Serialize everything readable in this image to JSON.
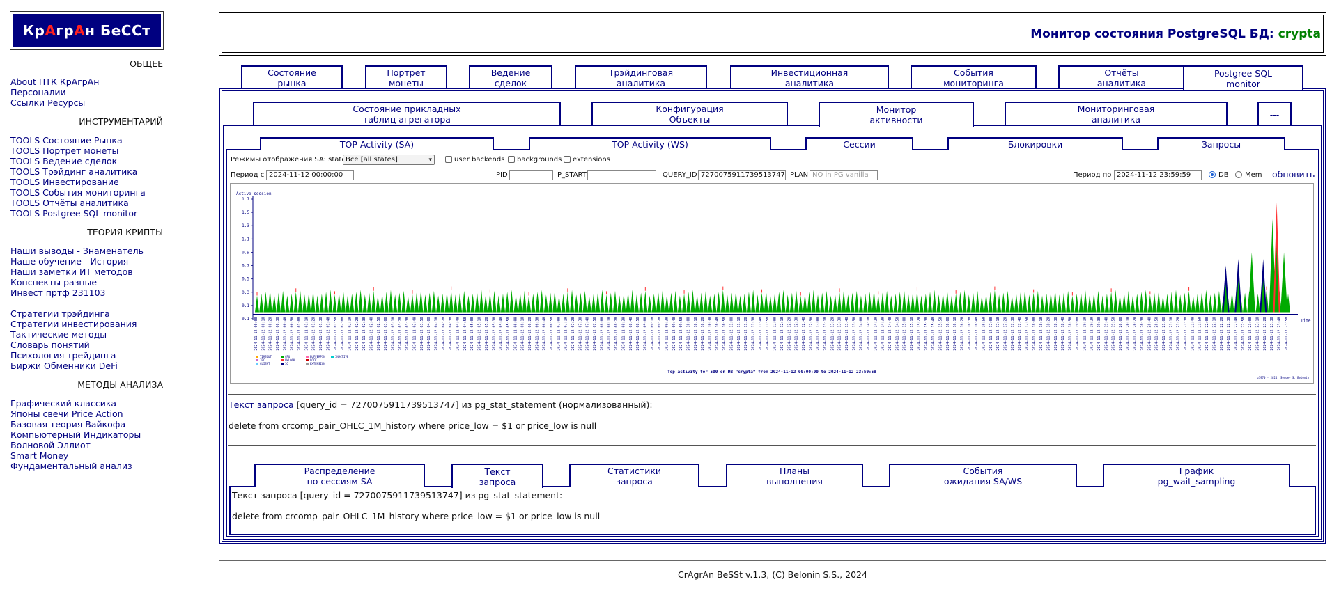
{
  "logo": {
    "parts": [
      {
        "t": "Кр",
        "red": false
      },
      {
        "t": "А",
        "red": true
      },
      {
        "t": "гр",
        "red": false
      },
      {
        "t": "А",
        "red": true
      },
      {
        "t": "н БеССт",
        "red": false
      }
    ]
  },
  "sidebar": {
    "sections": [
      {
        "heading": "ОБЩЕЕ",
        "links": [
          "About ПТК КрАгрАн",
          "Персоналии",
          "Ссылки Ресурсы"
        ]
      },
      {
        "heading": "ИНСТРУМЕНТАРИЙ",
        "links": [
          "TOOLS Состояние Рынка",
          "TOOLS Портрет монеты",
          "TOOLS Ведение сделок",
          "TOOLS Трэйдинг аналитика",
          "TOOLS Инвестирование",
          "TOOLS События мониторинга",
          "TOOLS Отчёты аналитика",
          "TOOLS Postgree SQL monitor"
        ]
      },
      {
        "heading": "ТЕОРИЯ КРИПТЫ",
        "links": [
          "Наши выводы - Знаменатель",
          "Наше обучение - История",
          "Наши заметки ИТ методов",
          "Конспекты разные",
          "Инвест пртф 231103",
          "",
          "Стратегии трэйдинга",
          "Стратегии инвестирования",
          "Тактические методы",
          "Словарь понятий",
          "Психология трейдинга",
          "Биржи Обменники DeFi"
        ]
      },
      {
        "heading": "МЕТОДЫ АНАЛИЗА",
        "links": [
          "Графический классика",
          "Японы свечи Price Action",
          "Базовая теория Вайкофа",
          "Компьютерный Индикаторы",
          "Волновой Эллиот",
          "Smart Money",
          "Фундаментальный анализ"
        ]
      }
    ]
  },
  "header": {
    "title": "Монитор состояния PostgreSQL БД:",
    "db": "crypta"
  },
  "main_tabs": [
    "Состояние\nрынка",
    "Портрет\nмонеты",
    "Ведение\nсделок",
    "Трэйдинговая\nаналитика",
    "Инвестиционная\nаналитика",
    "События\nмониторинга",
    "Отчёты\nаналитика",
    "Postgree SQL\nmonitor"
  ],
  "sub_tabs": [
    "Состояние прикладных\nтаблиц агрегатора",
    "Конфигурация\nОбъекты",
    "Монитор\nактивности",
    "Мониторинговая\nаналитика",
    "---"
  ],
  "activity_tabs": [
    "TOP Activity (SA)",
    "TOP Activity (WS)",
    "Сессии",
    "Блокировки",
    "Запросы"
  ],
  "controls": {
    "mode_label": "Режимы отображения SA: state",
    "mode_value": "Все [all states]",
    "chk_user_backends": "user backends",
    "chk_backgrounds": "backgrounds",
    "chk_extensions": "extensions",
    "period_from_label": "Период с",
    "period_from": "2024-11-12 00:00:00",
    "pid_label": "PID",
    "p_start_label": "P_START",
    "query_id_label": "QUERY_ID",
    "query_id": "7270075911739513747",
    "plan_label": "PLAN",
    "plan_placeholder": "NO in PG vanilla",
    "period_to_label": "Период по",
    "period_to": "2024-11-12 23:59:59",
    "radio_db": "DB",
    "radio_mem": "Mem",
    "refresh": "обновить"
  },
  "chart_data": {
    "type": "area",
    "title": "Top activity for 500 on DB \"crypta\" from 2024-11-12 00:00:00 to 2024-11-12 23:59:59",
    "ylabel": "Active session",
    "xlabel": "Time",
    "ylim": [
      -0.1,
      1.7
    ],
    "yticks": [
      "1.7",
      "1.5",
      "1.3",
      "1.1",
      "0.9",
      "0.7",
      "0.5",
      "0.3",
      "0.1",
      "-0.1"
    ],
    "x_start_label": "2024-11-12 00:00",
    "x_tick_step_minutes": 5,
    "n_ticks": 288,
    "baseline_peak": 0.3,
    "late_peaks": [
      {
        "pos": 0.936,
        "value": 0.7,
        "series": "IO"
      },
      {
        "pos": 0.948,
        "value": 0.8,
        "series": "IO"
      },
      {
        "pos": 0.961,
        "value": 0.9,
        "series": "CPU"
      },
      {
        "pos": 0.972,
        "value": 0.8,
        "series": "IO"
      },
      {
        "pos": 0.981,
        "value": 1.4,
        "series": "CPU"
      },
      {
        "pos": 0.985,
        "value": 1.65,
        "series": "LWLOCK"
      },
      {
        "pos": 0.992,
        "value": 0.9,
        "series": "CPU"
      }
    ],
    "legend": [
      "TIMEOUT",
      "IPC",
      "CLIENT",
      "CPU",
      "LWLOCK",
      "IO",
      "BUFFERPIN",
      "LOCK",
      "EXTENSION",
      "INACTIVE"
    ],
    "series_colors": {
      "CPU": "#00aa00",
      "IO": "#000080",
      "LWLOCK": "#ff3030",
      "TIMEOUT": "#ffaa00",
      "IPC": "#cc66cc",
      "CLIENT": "#66ccff",
      "LOCK": "#cc0000",
      "EXTENSION": "#999999",
      "BUFFERPIN": "#ff66aa",
      "INACTIVE": "#00cccc"
    },
    "copyright": "©1970 - 2024: Sergey S. Belonin"
  },
  "query_text": {
    "label_blue": "Текст запроса",
    "label_rest": "[query_id = 7270075911739513747] из pg_stat_statement (нормализованный):",
    "sql": "delete from crcomp_pair_OHLC_1M_history where price_low = $1 or price_low is null"
  },
  "bottom_tabs": [
    "Распределение\nпо сессиям SA",
    "Текст\nзапроса",
    "Статистики\nзапроса",
    "Планы\nвыполнения",
    "События\nожидания SA/WS",
    "График\npg_wait_sampling"
  ],
  "bottom_panel": {
    "label": "Текст запроса [query_id = 7270075911739513747] из pg_stat_statement:",
    "sql": "delete from crcomp_pair_OHLC_1M_history where price_low = $1 or price_low is null"
  },
  "footer": "CrAgrAn BeSSt v.1.3, (C) Belonin S.S., 2024"
}
